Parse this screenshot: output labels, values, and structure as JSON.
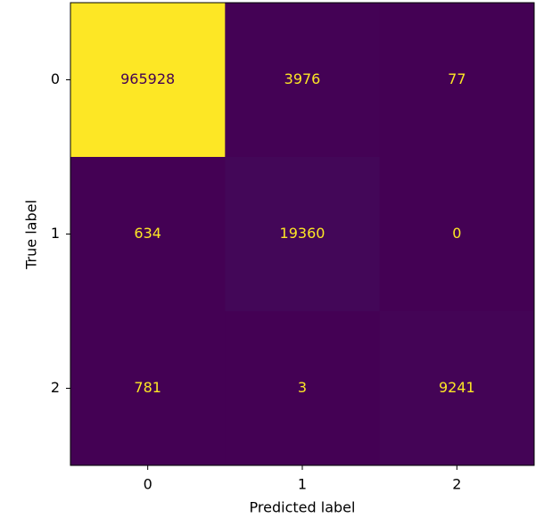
{
  "chart_data": {
    "type": "heatmap",
    "x_categories": [
      "0",
      "1",
      "2"
    ],
    "y_categories": [
      "0",
      "1",
      "2"
    ],
    "values": [
      [
        965928,
        3976,
        77
      ],
      [
        634,
        19360,
        0
      ],
      [
        781,
        3,
        9241
      ]
    ],
    "xlabel": "Predicted label",
    "ylabel": "True label",
    "colormap": "viridis"
  }
}
